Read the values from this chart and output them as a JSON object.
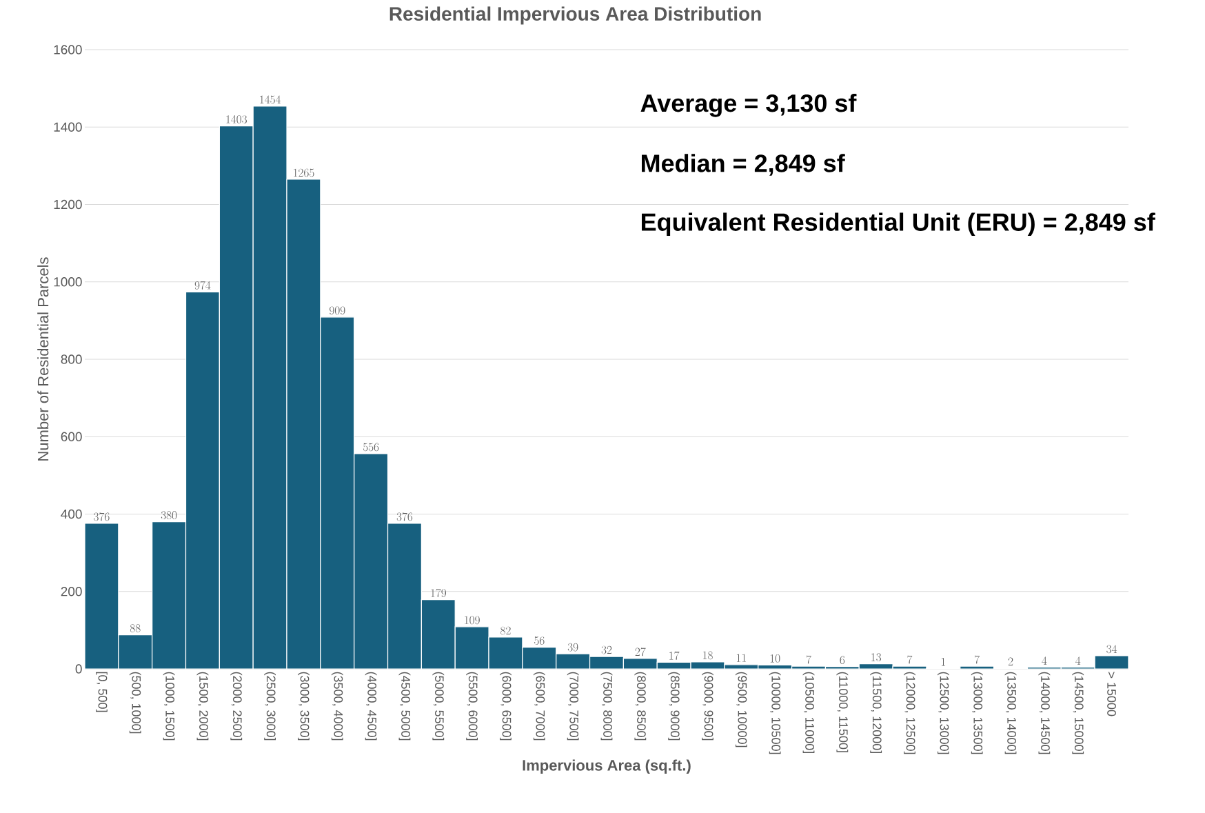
{
  "chart_data": {
    "type": "bar",
    "title": "Residential Impervious Area Distribution",
    "xlabel": "Impervious Area (sq.ft.)",
    "ylabel": "Number of Residential Parcels",
    "categories": [
      "[0, 500]",
      "(500, 1000]",
      "(1000, 1500]",
      "(1500, 2000]",
      "(2000, 2500]",
      "(2500, 3000]",
      "(3000, 3500]",
      "(3500, 4000]",
      "(4000, 4500]",
      "(4500, 5000]",
      "(5000, 5500]",
      "(5500, 6000]",
      "(6000, 6500]",
      "(6500, 7000]",
      "(7000, 7500]",
      "(7500, 8000]",
      "(8000, 8500]",
      "(8500, 9000]",
      "(9000, 9500]",
      "(9500, 10000]",
      "(10000, 10500]",
      "(10500, 11000]",
      "(11000, 11500]",
      "(11500, 12000]",
      "(12000, 12500]",
      "(12500, 13000]",
      "(13000, 13500]",
      "(13500, 14000]",
      "(14000, 14500]",
      "(14500, 15000]",
      "> 15000"
    ],
    "values": [
      376,
      88,
      380,
      974,
      1403,
      1454,
      1265,
      909,
      556,
      376,
      179,
      109,
      82,
      56,
      39,
      32,
      27,
      17,
      18,
      11,
      10,
      7,
      6,
      13,
      7,
      1,
      7,
      2,
      4,
      4,
      34
    ],
    "color": "#17607f",
    "ylim": [
      0,
      1600
    ],
    "yticks": [
      0,
      200,
      400,
      600,
      800,
      1000,
      1200,
      1400,
      1600
    ],
    "grid": "y",
    "data_labels": true,
    "annotations": [
      "Average = 3,130 sf",
      "Median = 2,849 sf",
      "Equivalent Residential Unit (ERU) = 2,849 sf"
    ]
  }
}
